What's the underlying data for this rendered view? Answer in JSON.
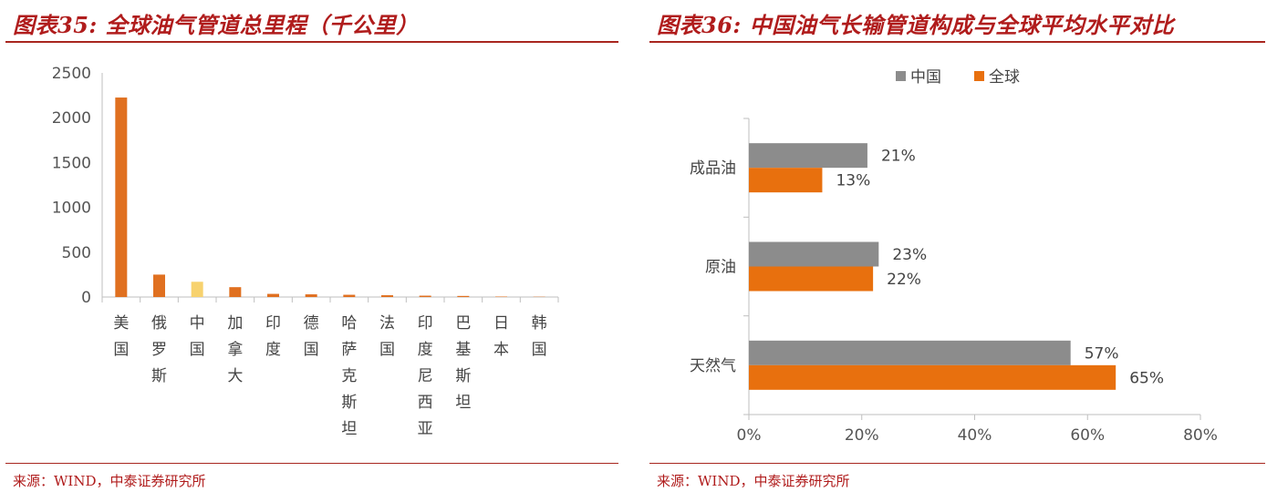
{
  "left": {
    "title": "图表35: 全球油气管道总里程（千公里）",
    "source": "来源：WIND，中泰证券研究所",
    "chart_data": {
      "type": "bar",
      "categories": [
        "美国",
        "俄罗斯",
        "中国",
        "加拿大",
        "印度",
        "德国",
        "哈萨克斯坦",
        "法国",
        "印度尼西亚",
        "巴基斯坦",
        "日本",
        "韩国"
      ],
      "values": [
        2225,
        250,
        170,
        110,
        35,
        30,
        25,
        20,
        15,
        12,
        5,
        3
      ],
      "ylim": [
        0,
        2500
      ],
      "yticks": [
        "0",
        "500",
        "1000",
        "1500",
        "2000",
        "2500"
      ],
      "bar_color": "#e07020",
      "highlight_index": 2,
      "highlight_color": "#f7d26e",
      "xlabel": "",
      "ylabel": ""
    }
  },
  "right": {
    "title": "图表36: 中国油气长输管道构成与全球平均水平对比",
    "source": "来源：WIND，中泰证券研究所",
    "chart_data": {
      "type": "bar",
      "orientation": "horizontal",
      "categories": [
        "成品油",
        "原油",
        "天然气"
      ],
      "series": [
        {
          "name": "中国",
          "values": [
            21,
            23,
            57
          ],
          "labels": [
            "21%",
            "23%",
            "57%"
          ],
          "color": "#8c8c8c"
        },
        {
          "name": "全球",
          "values": [
            13,
            22,
            65
          ],
          "labels": [
            "13%",
            "22%",
            "65%"
          ],
          "color": "#e8700e"
        }
      ],
      "xlim": [
        0,
        80
      ],
      "xticks": [
        "0%",
        "20%",
        "40%",
        "60%",
        "80%"
      ],
      "legend_position": "top",
      "xlabel": "",
      "ylabel": ""
    }
  }
}
